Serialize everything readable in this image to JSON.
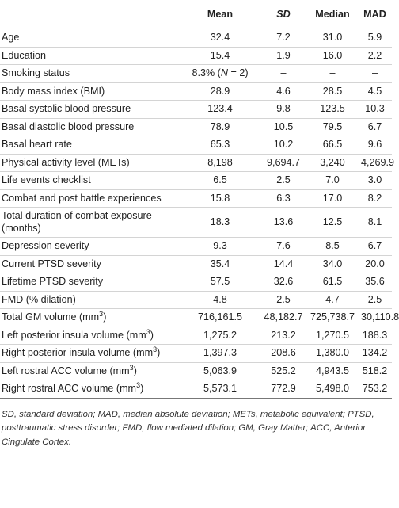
{
  "table": {
    "header": [
      "Mean",
      [
        {
          "text": "SD",
          "style": "italic"
        }
      ],
      "Median",
      "MAD"
    ],
    "rows": [
      [
        "Age",
        "32.4",
        "7.2",
        "31.0",
        "5.9"
      ],
      [
        "Education",
        "15.4",
        "1.9",
        "16.0",
        "2.2"
      ],
      [
        "Smoking status",
        [
          {
            "text": "8.3% (",
            "style": "normal"
          },
          {
            "text": "N",
            "style": "italic"
          },
          {
            "text": " = 2)",
            "style": "normal"
          }
        ],
        "–",
        "–",
        "–"
      ],
      [
        "Body mass index (BMI)",
        "28.9",
        "4.6",
        "28.5",
        "4.5"
      ],
      [
        "Basal systolic blood pressure",
        "123.4",
        "9.8",
        "123.5",
        "10.3"
      ],
      [
        "Basal diastolic blood pressure",
        "78.9",
        "10.5",
        "79.5",
        "6.7"
      ],
      [
        "Basal heart rate",
        "65.3",
        "10.2",
        "66.5",
        "9.6"
      ],
      [
        "Physical activity level (METs)",
        "8,198",
        "9,694.7",
        "3,240",
        "4,269.9"
      ],
      [
        "Life events checklist",
        "6.5",
        "2.5",
        "7.0",
        "3.0"
      ],
      [
        "Combat and post battle experiences",
        "15.8",
        "6.3",
        "17.0",
        "8.2"
      ],
      [
        "Total duration of combat exposure (months)",
        "18.3",
        "13.6",
        "12.5",
        "8.1"
      ],
      [
        "Depression severity",
        "9.3",
        "7.6",
        "8.5",
        "6.7"
      ],
      [
        "Current PTSD severity",
        "35.4",
        "14.4",
        "34.0",
        "20.0"
      ],
      [
        "Lifetime PTSD severity",
        "57.5",
        "32.6",
        "61.5",
        "35.6"
      ],
      [
        "FMD (% dilation)",
        "4.8",
        "2.5",
        "4.7",
        "2.5"
      ],
      [
        [
          {
            "text": "Total GM volume (mm",
            "style": "normal"
          },
          {
            "text": "3",
            "style": "sup"
          },
          {
            "text": ")",
            "style": "normal"
          }
        ],
        "716,161.5",
        "48,182.7",
        "725,738.7",
        "30,110.8"
      ],
      [
        [
          {
            "text": "Left posterior insula volume (mm",
            "style": "normal"
          },
          {
            "text": "3",
            "style": "sup"
          },
          {
            "text": ")",
            "style": "normal"
          }
        ],
        "1,275.2",
        "213.2",
        "1,270.5",
        "188.3"
      ],
      [
        [
          {
            "text": "Right posterior insula volume (mm",
            "style": "normal"
          },
          {
            "text": "3",
            "style": "sup"
          },
          {
            "text": ")",
            "style": "normal"
          }
        ],
        "1,397.3",
        "208.6",
        "1,380.0",
        "134.2"
      ],
      [
        [
          {
            "text": "Left rostral ACC volume (mm",
            "style": "normal"
          },
          {
            "text": "3",
            "style": "sup"
          },
          {
            "text": ")",
            "style": "normal"
          }
        ],
        "5,063.9",
        "525.2",
        "4,943.5",
        "518.2"
      ],
      [
        [
          {
            "text": "Right rostral ACC volume (mm",
            "style": "normal"
          },
          {
            "text": "3",
            "style": "sup"
          },
          {
            "text": ")",
            "style": "normal"
          }
        ],
        "5,573.1",
        "772.9",
        "5,498.0",
        "753.2"
      ]
    ],
    "footnote": "SD, standard deviation; MAD, median absolute deviation; METs, metabolic equivalent; PTSD, posttraumatic stress disorder; FMD, flow mediated dilation; GM, Gray Matter; ACC, Anterior Cingulate Cortex."
  }
}
